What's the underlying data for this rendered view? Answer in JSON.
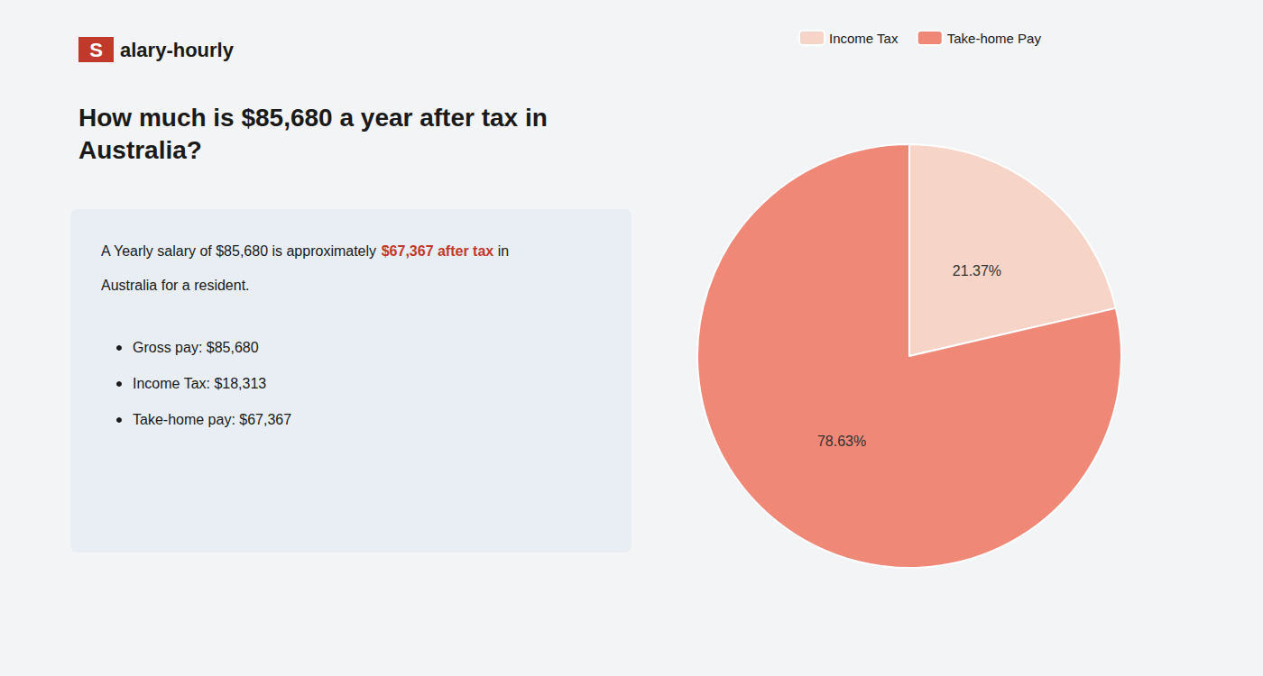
{
  "chart_data": {
    "type": "pie",
    "title": "How much is $85,680 a year after tax in\nAustralia?",
    "annotations": [
      "S",
      "alary-hourly",
      "A Yearly salary of $85,680 is approximately ",
      "$67,367 after tax",
      " in",
      "Australia for a resident.",
      "Gross pay: $85,680",
      "Income Tax: $18,313",
      "Take-home pay: $67,367"
    ],
    "categories": [
      "Income Tax",
      "Take-home Pay"
    ],
    "values": [
      21.37,
      78.63
    ],
    "value_labels": [
      "21.37%",
      "78.63%"
    ],
    "colors": [
      "#f7d4c8",
      "#f08878"
    ],
    "data_labels": true,
    "legend": "top"
  }
}
